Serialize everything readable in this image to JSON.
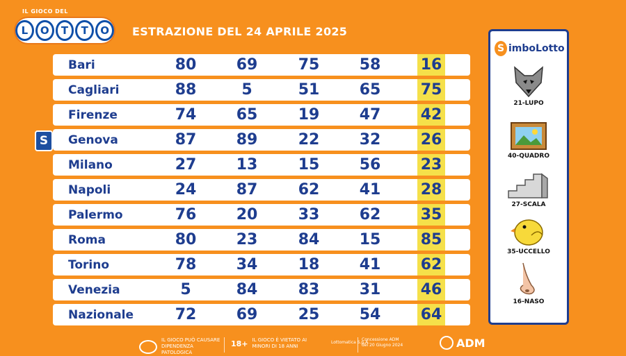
{
  "logo": {
    "small_text": "IL GIOCO DEL",
    "letters": [
      "L",
      "O",
      "T",
      "T",
      "O"
    ]
  },
  "title": "ESTRAZIONE DEL 24 APRILE 2025",
  "rows": [
    {
      "city": "Bari",
      "nums": [
        "80",
        "69",
        "75",
        "58",
        "16"
      ]
    },
    {
      "city": "Cagliari",
      "nums": [
        "88",
        "5",
        "51",
        "65",
        "75"
      ]
    },
    {
      "city": "Firenze",
      "nums": [
        "74",
        "65",
        "19",
        "47",
        "42"
      ]
    },
    {
      "city": "Genova",
      "nums": [
        "87",
        "89",
        "22",
        "32",
        "26"
      ],
      "badge": "S"
    },
    {
      "city": "Milano",
      "nums": [
        "27",
        "13",
        "15",
        "56",
        "23"
      ]
    },
    {
      "city": "Napoli",
      "nums": [
        "24",
        "87",
        "62",
        "41",
        "28"
      ]
    },
    {
      "city": "Palermo",
      "nums": [
        "76",
        "20",
        "33",
        "62",
        "35"
      ]
    },
    {
      "city": "Roma",
      "nums": [
        "80",
        "23",
        "84",
        "15",
        "85"
      ]
    },
    {
      "city": "Torino",
      "nums": [
        "78",
        "34",
        "18",
        "41",
        "62"
      ]
    },
    {
      "city": "Venezia",
      "nums": [
        "5",
        "84",
        "83",
        "31",
        "46"
      ]
    },
    {
      "city": "Nazionale",
      "nums": [
        "72",
        "69",
        "25",
        "54",
        "64"
      ]
    }
  ],
  "sidebar": {
    "title": "SimboLotto",
    "title_s": "S",
    "title_rest": "imboLotto",
    "symbols": [
      {
        "label": "21-LUPO",
        "icon": "wolf-icon"
      },
      {
        "label": "40-QUADRO",
        "icon": "picture-frame-icon"
      },
      {
        "label": "27-SCALA",
        "icon": "stairs-icon"
      },
      {
        "label": "35-UCCELLO",
        "icon": "bird-icon"
      },
      {
        "label": "16-NASO",
        "icon": "nose-icon"
      }
    ]
  },
  "footer": {
    "warning1": "IL GIOCO PUÒ CAUSARE DIPENDENZA PATOLOGICA",
    "age": "18+",
    "warning2": "IL GIOCO È VIETATO AI MINORI DI 18 ANNI",
    "lottomatica": "Lottomatica S.p.A.",
    "concession": "Concessione ADM del 20 Giugno 2024",
    "adm": "ADM"
  },
  "colors": {
    "background": "#f7901e",
    "text_blue": "#1e3d8f",
    "highlight": "#f5e04a"
  }
}
